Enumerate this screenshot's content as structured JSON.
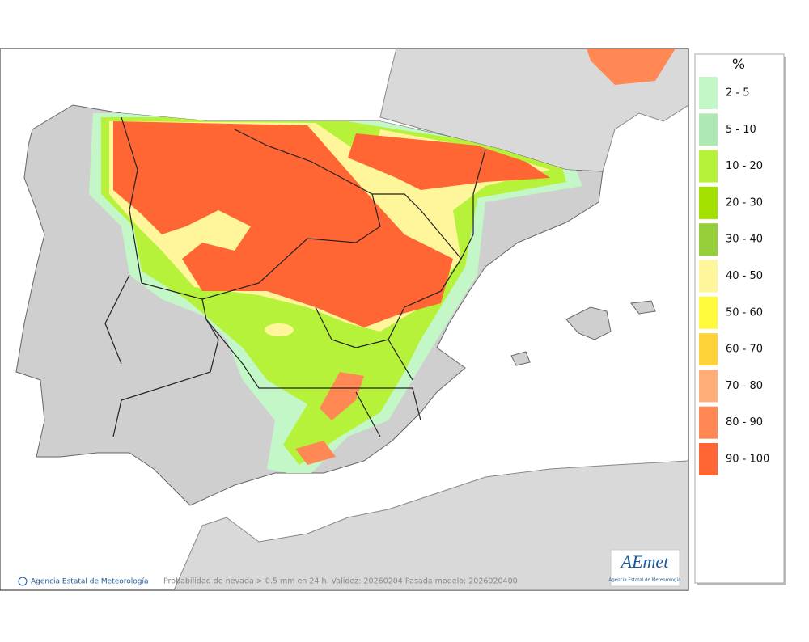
{
  "legend": {
    "title": "%",
    "items": [
      {
        "label": "2 - 5",
        "color": "#c4f7c8"
      },
      {
        "label": "5 - 10",
        "color": "#aee8b2"
      },
      {
        "label": "10 - 20",
        "color": "#b7f23a"
      },
      {
        "label": "20 - 30",
        "color": "#a3e000"
      },
      {
        "label": "30 - 40",
        "color": "#97cf3a"
      },
      {
        "label": "40 - 50",
        "color": "#fff59a"
      },
      {
        "label": "50 - 60",
        "color": "#fffa3c"
      },
      {
        "label": "60 - 70",
        "color": "#ffd23a"
      },
      {
        "label": "70 - 80",
        "color": "#ffae7a"
      },
      {
        "label": "80 - 90",
        "color": "#ff8855"
      },
      {
        "label": "90 - 100",
        "color": "#ff6633"
      }
    ]
  },
  "footer": {
    "credit": "Agencia Estatal de Meteorología",
    "caption": "Probabilidad de nevada > 0.5 mm en 24 h. Validez: 20260204 Pasada modelo: 2026020400"
  },
  "logo": {
    "name": "AEmet",
    "subtitle": "Agencia Estatal de Meteorología"
  }
}
